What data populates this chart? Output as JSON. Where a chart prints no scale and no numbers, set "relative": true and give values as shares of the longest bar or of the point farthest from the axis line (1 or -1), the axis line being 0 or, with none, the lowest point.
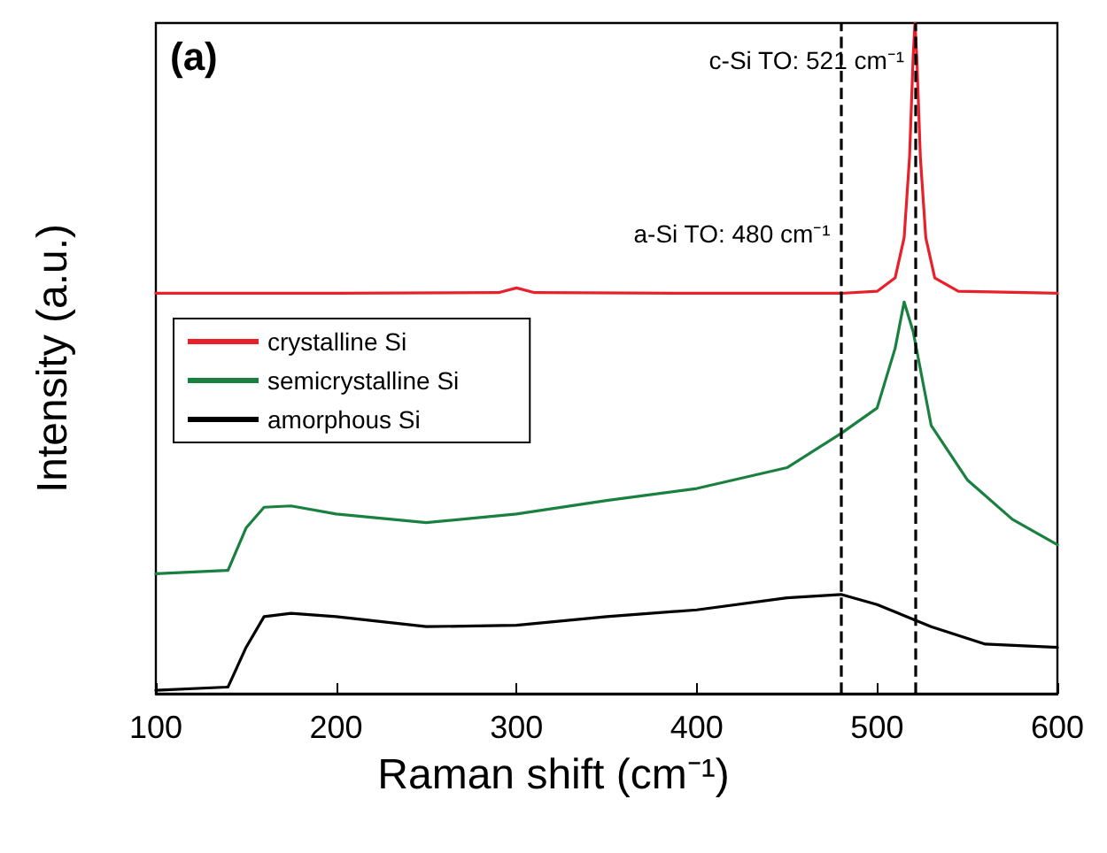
{
  "chart_data": {
    "type": "line",
    "relative": true,
    "xlabel": "Raman shift (cm⁻¹)",
    "ylabel": "Intensity (a.u.)",
    "annotations": [
      "(a)"
    ],
    "xlim": [
      100,
      600
    ],
    "xticks": [
      100,
      200,
      300,
      400,
      500,
      600
    ],
    "grid": false,
    "legend": "left",
    "marker": "none",
    "line_style": "solid",
    "series": [
      {
        "name": "crystalline Si",
        "color": "#e8202a",
        "x": [
          100,
          200,
          290,
          300,
          310,
          400,
          480,
          500,
          510,
          515,
          518,
          520,
          521,
          522,
          524,
          527,
          532,
          545,
          600
        ],
        "values": [
          0.597,
          0.597,
          0.598,
          0.605,
          0.598,
          0.597,
          0.597,
          0.6,
          0.62,
          0.68,
          0.8,
          0.95,
          1,
          0.95,
          0.8,
          0.68,
          0.62,
          0.6,
          0.597
        ]
      },
      {
        "name": "semicrystalline Si",
        "color": "#1a8040",
        "x": [
          100,
          140,
          150,
          160,
          175,
          200,
          250,
          300,
          350,
          400,
          450,
          480,
          500,
          510,
          515,
          520,
          530,
          550,
          575,
          600
        ],
        "values": [
          0.179,
          0.184,
          0.247,
          0.278,
          0.28,
          0.268,
          0.255,
          0.268,
          0.288,
          0.306,
          0.337,
          0.388,
          0.426,
          0.515,
          0.584,
          0.54,
          0.4,
          0.319,
          0.26,
          0.222
        ]
      },
      {
        "name": "amorphous Si",
        "color": "#000000",
        "x": [
          100,
          140,
          150,
          160,
          175,
          200,
          250,
          300,
          350,
          400,
          450,
          480,
          500,
          530,
          560,
          600
        ],
        "values": [
          0.005,
          0.01,
          0.069,
          0.115,
          0.12,
          0.115,
          0.1,
          0.102,
          0.115,
          0.125,
          0.143,
          0.148,
          0.133,
          0.1,
          0.074,
          0.069
        ]
      }
    ],
    "ref_lines": [
      {
        "axis": "x",
        "value": 480,
        "label": "a-Si TO: 480 cm⁻¹",
        "line_style": "dashed",
        "color": "#000000"
      },
      {
        "axis": "x",
        "value": 521,
        "label": "c-Si TO: 521 cm⁻¹",
        "line_style": "dashed",
        "color": "#000000"
      }
    ]
  }
}
